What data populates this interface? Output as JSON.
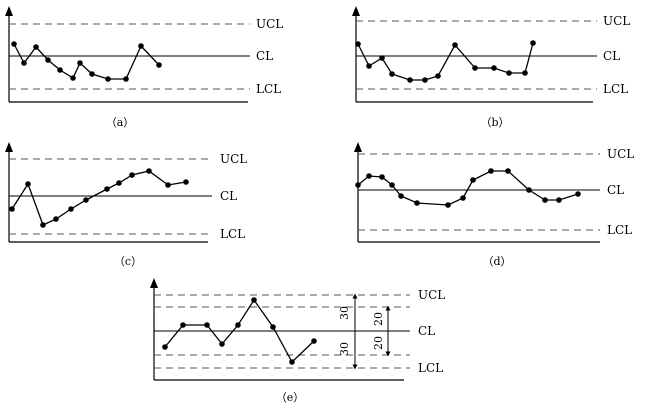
{
  "labels": {
    "ucl": "UCL",
    "cl": "CL",
    "lcl": "LCL"
  },
  "panels": [
    {
      "id": "a",
      "caption": "（a）",
      "points": [
        [
          14,
          44
        ],
        [
          24,
          63
        ],
        [
          36,
          47
        ],
        [
          48,
          60
        ],
        [
          60,
          70
        ],
        [
          73,
          78
        ],
        [
          80,
          63
        ],
        [
          92,
          74
        ],
        [
          108,
          79
        ],
        [
          126,
          79
        ],
        [
          141,
          46
        ],
        [
          159,
          65
        ]
      ]
    },
    {
      "id": "b",
      "caption": "（b）",
      "points": [
        [
          11,
          44
        ],
        [
          22,
          66
        ],
        [
          35,
          58
        ],
        [
          45,
          74
        ],
        [
          63,
          80
        ],
        [
          78,
          80
        ],
        [
          91,
          76
        ],
        [
          108,
          45
        ],
        [
          128,
          68
        ],
        [
          147,
          68
        ],
        [
          162,
          73
        ],
        [
          178,
          73
        ],
        [
          186,
          43
        ]
      ]
    },
    {
      "id": "c",
      "caption": "（c）",
      "points": [
        [
          12,
          209
        ],
        [
          28,
          184
        ],
        [
          43,
          225
        ],
        [
          56,
          219
        ],
        [
          71,
          209
        ],
        [
          86,
          200
        ],
        [
          107,
          189
        ],
        [
          119,
          183
        ],
        [
          132,
          175
        ],
        [
          149,
          171
        ],
        [
          168,
          185
        ],
        [
          186,
          182
        ]
      ]
    },
    {
      "id": "d",
      "caption": "（d）",
      "points": [
        [
          15,
          185
        ],
        [
          26,
          176
        ],
        [
          39,
          177
        ],
        [
          49,
          185
        ],
        [
          58,
          196
        ],
        [
          74,
          203
        ],
        [
          105,
          205
        ],
        [
          120,
          198
        ],
        [
          130,
          180
        ],
        [
          148,
          171
        ],
        [
          165,
          171
        ],
        [
          186,
          190
        ],
        [
          202,
          200
        ],
        [
          216,
          200
        ],
        [
          235,
          194
        ]
      ]
    },
    {
      "id": "e",
      "caption": "（e）",
      "points": [
        [
          15,
          347
        ],
        [
          33,
          325
        ],
        [
          57,
          325
        ],
        [
          72,
          344
        ],
        [
          88,
          325
        ],
        [
          104,
          300
        ],
        [
          123,
          327
        ],
        [
          142,
          362
        ],
        [
          164,
          341
        ]
      ],
      "dims": {
        "outer_upper": "30",
        "outer_lower": "30",
        "inner_upper": "20",
        "inner_lower": "20"
      }
    }
  ]
}
